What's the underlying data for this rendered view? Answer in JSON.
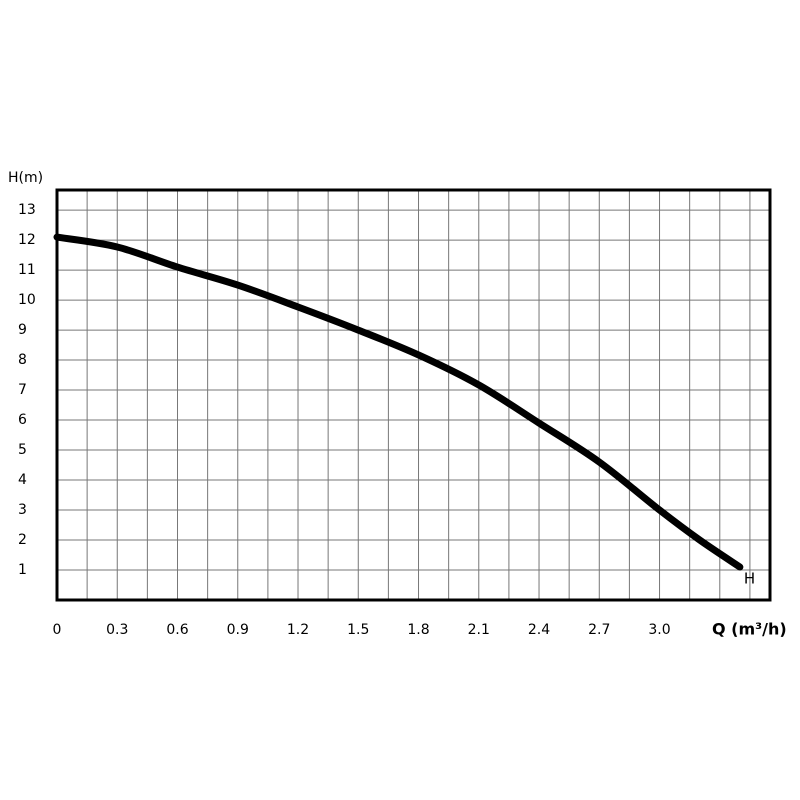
{
  "chart_data": {
    "type": "line",
    "ylabel": "H(m)",
    "xlabel": "Q (m³/h)",
    "x": [
      0,
      0.3,
      0.6,
      0.9,
      1.2,
      1.5,
      1.8,
      2.1,
      2.4,
      2.7,
      3.0,
      3.2,
      3.4
    ],
    "series": [
      {
        "name": "H",
        "color": "#000000",
        "values": [
          12.1,
          11.77,
          11.1,
          10.5,
          9.77,
          9.0,
          8.17,
          7.17,
          5.9,
          4.6,
          3.0,
          2.0,
          1.1
        ]
      }
    ],
    "xlim": [
      0,
      3.55
    ],
    "ylim": [
      0,
      13.67
    ],
    "xticks": [
      0,
      0.3,
      0.6,
      0.9,
      1.2,
      1.5,
      1.8,
      2.1,
      2.4,
      2.7,
      {
        "value": 3,
        "label": "3.0"
      }
    ],
    "yticks": [
      1,
      2,
      3,
      4,
      5,
      6,
      7,
      8,
      9,
      10,
      11,
      12,
      13
    ],
    "grid": true
  }
}
